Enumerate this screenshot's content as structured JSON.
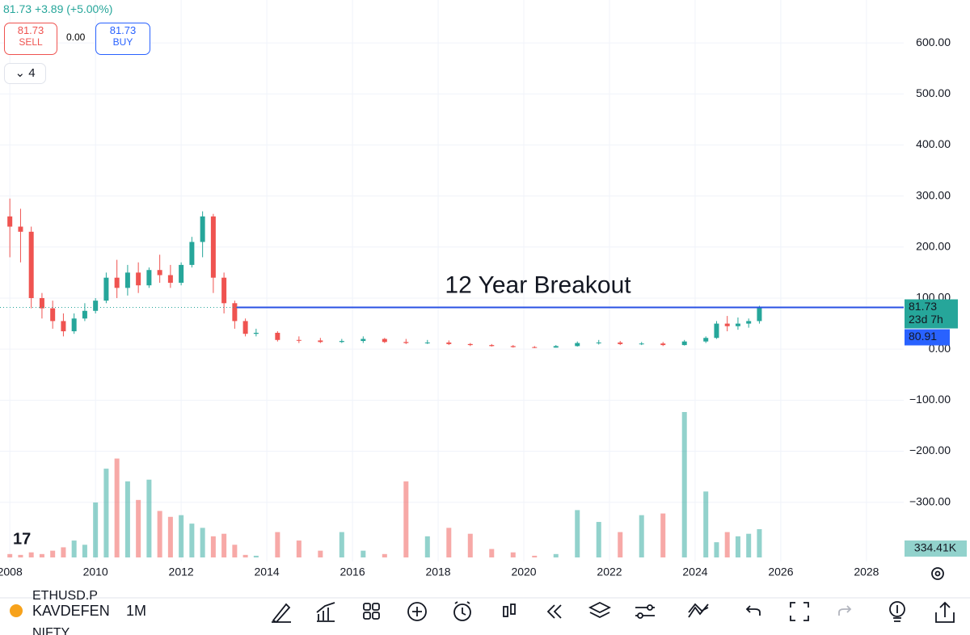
{
  "header": {
    "price": "81.73",
    "change": "+3.89 (+5.00%)",
    "sell_price": "81.73",
    "sell_label": "SELL",
    "spread": "0.00",
    "buy_price": "81.73",
    "buy_label": "BUY",
    "layers": "4"
  },
  "toolbar": {
    "symbol": "KAVDEFEN",
    "interval": "1M",
    "ghost_1": "ETHUSD.P",
    "ghost_2": "NIFTY"
  },
  "chart_data": {
    "type": "candlestick",
    "x": [
      2008.0,
      2008.25,
      2008.5,
      2008.75,
      2009.0,
      2009.25,
      2009.5,
      2009.75,
      2010.0,
      2010.25,
      2010.5,
      2010.75,
      2011.0,
      2011.25,
      2011.5,
      2011.75,
      2012.0,
      2012.25,
      2012.5,
      2012.75,
      2013.0,
      2013.25,
      2013.5,
      2013.75,
      2014.25,
      2014.75,
      2015.25,
      2015.75,
      2016.25,
      2016.75,
      2017.25,
      2017.75,
      2018.25,
      2018.75,
      2019.25,
      2019.75,
      2020.25,
      2020.75,
      2021.25,
      2021.75,
      2022.25,
      2022.75,
      2023.25,
      2023.75,
      2024.25,
      2024.5,
      2024.75,
      2025.0,
      2025.25,
      2025.5
    ],
    "open": [
      260,
      240,
      230,
      100,
      80,
      55,
      35,
      60,
      75,
      95,
      140,
      120,
      150,
      125,
      155,
      145,
      130,
      165,
      210,
      260,
      140,
      90,
      55,
      30,
      32,
      18,
      17,
      14,
      16,
      20,
      14,
      12,
      13,
      10,
      8,
      6,
      4,
      3,
      6,
      12,
      13,
      10,
      11,
      8,
      15,
      22,
      50,
      45,
      50,
      55
    ],
    "high": [
      295,
      275,
      240,
      110,
      95,
      70,
      70,
      90,
      100,
      150,
      175,
      165,
      170,
      160,
      185,
      165,
      170,
      220,
      270,
      265,
      150,
      95,
      60,
      40,
      35,
      25,
      22,
      20,
      25,
      22,
      20,
      18,
      17,
      12,
      10,
      8,
      6,
      8,
      15,
      18,
      16,
      14,
      14,
      18,
      25,
      55,
      65,
      62,
      60,
      85
    ],
    "low": [
      180,
      170,
      80,
      60,
      40,
      25,
      30,
      55,
      70,
      90,
      100,
      105,
      110,
      120,
      130,
      120,
      125,
      160,
      180,
      110,
      70,
      40,
      25,
      25,
      15,
      12,
      12,
      12,
      12,
      12,
      10,
      10,
      8,
      6,
      5,
      3,
      2,
      3,
      5,
      9,
      8,
      8,
      6,
      7,
      12,
      20,
      35,
      38,
      42,
      50
    ],
    "close": [
      240,
      230,
      100,
      80,
      55,
      35,
      60,
      75,
      95,
      140,
      120,
      150,
      125,
      155,
      145,
      130,
      165,
      210,
      260,
      140,
      90,
      55,
      30,
      32,
      18,
      17,
      14,
      16,
      20,
      14,
      12,
      13,
      10,
      8,
      6,
      4,
      3,
      6,
      12,
      13,
      10,
      11,
      8,
      15,
      22,
      50,
      45,
      50,
      55,
      81.73
    ],
    "up_color": "#26a69a",
    "down_color": "#ef5350",
    "volume": {
      "values": [
        40,
        30,
        60,
        40,
        80,
        120,
        200,
        150,
        650,
        1050,
        1170,
        900,
        680,
        920,
        550,
        480,
        500,
        400,
        350,
        250,
        280,
        150,
        30,
        20,
        300,
        200,
        80,
        300,
        80,
        40,
        900,
        250,
        350,
        280,
        100,
        60,
        20,
        40,
        560,
        420,
        300,
        500,
        520,
        1720,
        780,
        180,
        300,
        250,
        280,
        334.41
      ],
      "last_label": "334.41K"
    },
    "xlim": [
      2007.77,
      2028.87
    ],
    "ylim": [
      -416,
      684
    ],
    "xticks": [
      2008,
      2010,
      2012,
      2014,
      2016,
      2018,
      2020,
      2022,
      2024,
      2026,
      2028
    ],
    "yticks": [
      {
        "value": 600,
        "label": "600.00"
      },
      {
        "value": 500,
        "label": "500.00"
      },
      {
        "value": 400,
        "label": "400.00"
      },
      {
        "value": 300,
        "label": "300.00"
      },
      {
        "value": 200,
        "label": "200.00"
      },
      {
        "value": 100,
        "label": "100.00"
      },
      {
        "value": 0,
        "label": "0.00"
      },
      {
        "value": -100,
        "label": "−100.00"
      },
      {
        "value": -200,
        "label": "−200.00"
      },
      {
        "value": -300,
        "label": "−300.00"
      }
    ],
    "grid": true,
    "breakout": {
      "label": "12 Year Breakout",
      "value": 81.73,
      "x_start": 2013.3,
      "color": "#2952e3"
    },
    "last_price": {
      "value": 81.73,
      "countdown": "23d 7h"
    },
    "bid": 80.91
  }
}
